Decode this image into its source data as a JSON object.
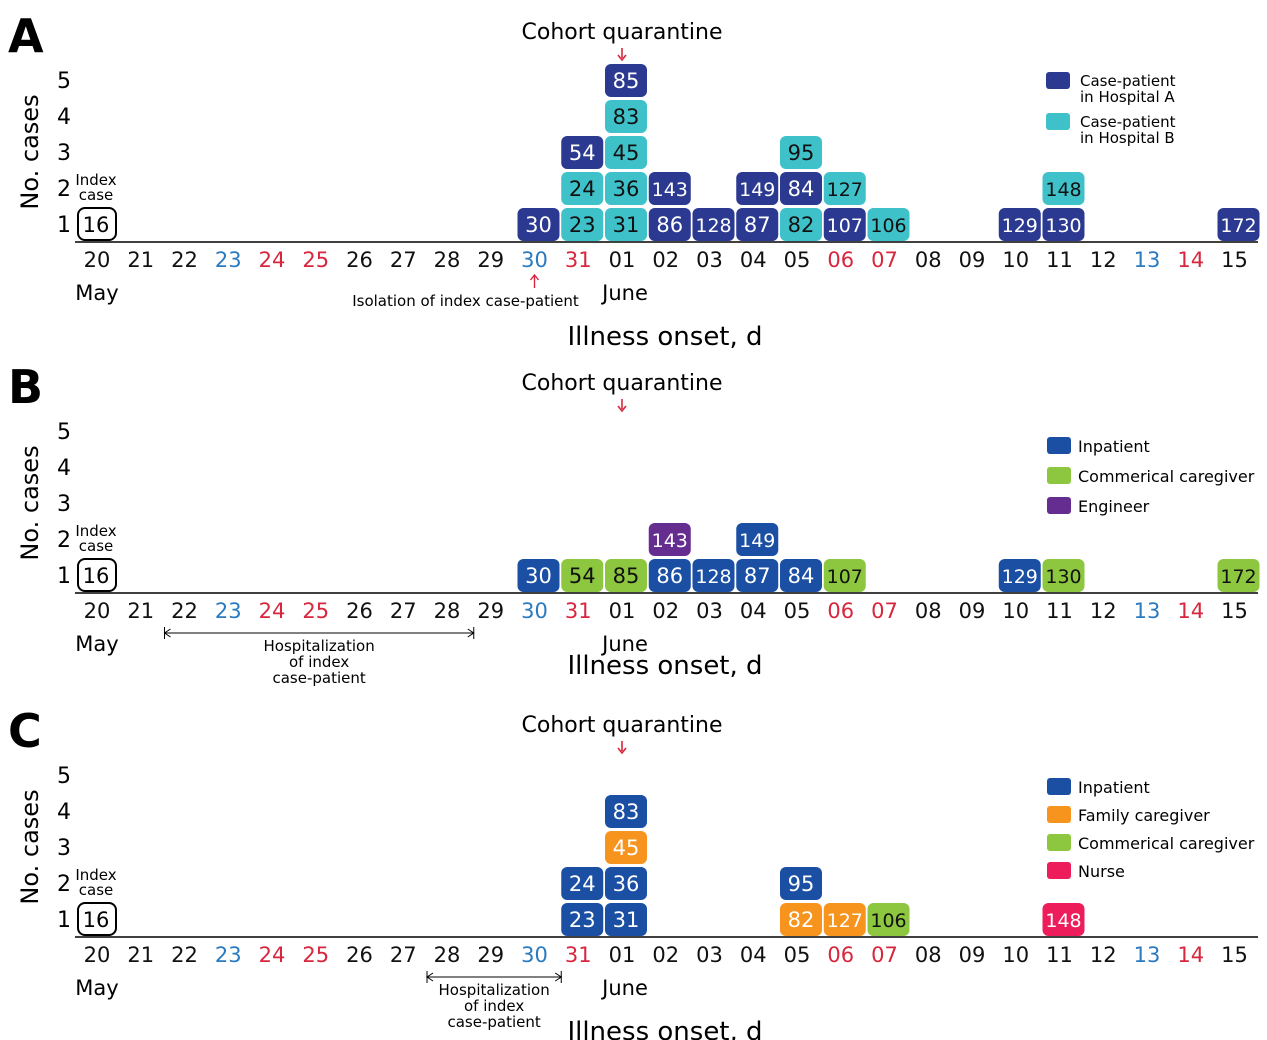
{
  "colors": {
    "hospital_a": "#2b3990",
    "hospital_b": "#3fc1c9",
    "inpatient": "#1a4fa3",
    "commercial_caregiver": "#8dc63f",
    "engineer": "#662d91",
    "family_caregiver": "#f7941d",
    "nurse": "#ed1c5a",
    "weekend_blue": "#2a7ac0",
    "weekend_red": "#d7263d",
    "arrow_red": "#d7263d"
  },
  "chart_data": [
    {
      "type": "bar",
      "panel_label": "A",
      "title": "Cohort quarantine",
      "xlabel": "Illness onset, d",
      "ylabel": "No. cases",
      "ylim": [
        0,
        5
      ],
      "yticks": [
        "1",
        "2",
        "3",
        "4",
        "5"
      ],
      "x_days": [
        "20",
        "21",
        "22",
        "23",
        "24",
        "25",
        "26",
        "27",
        "28",
        "29",
        "30",
        "31",
        "01",
        "02",
        "03",
        "04",
        "05",
        "06",
        "07",
        "08",
        "09",
        "10",
        "11",
        "12",
        "13",
        "14",
        "15"
      ],
      "day_colors": [
        "k",
        "k",
        "k",
        "b",
        "r",
        "r",
        "k",
        "k",
        "k",
        "k",
        "b",
        "r",
        "k",
        "k",
        "k",
        "k",
        "k",
        "r",
        "r",
        "k",
        "k",
        "k",
        "k",
        "k",
        "b",
        "r",
        "k"
      ],
      "month_labels": [
        {
          "text": "May",
          "at": "20"
        },
        {
          "text": "June",
          "at": "01"
        }
      ],
      "index_case": {
        "id": "16",
        "day": "20",
        "label_line1": "Index",
        "label_line2": "case"
      },
      "quarantine_day": "01",
      "annotation": {
        "type": "arrow",
        "text": "Isolation of index case-patient",
        "day": "30"
      },
      "legend": [
        {
          "key": "hospital_a",
          "line1": "Case-patient",
          "line2": "in Hospital A"
        },
        {
          "key": "hospital_b",
          "line1": "Case-patient",
          "line2": "in Hospital B"
        }
      ],
      "cases": [
        {
          "id": "30",
          "day": "30",
          "level": 1,
          "cat": "hospital_a"
        },
        {
          "id": "23",
          "day": "31",
          "level": 1,
          "cat": "hospital_b"
        },
        {
          "id": "24",
          "day": "31",
          "level": 2,
          "cat": "hospital_b"
        },
        {
          "id": "54",
          "day": "31",
          "level": 3,
          "cat": "hospital_a"
        },
        {
          "id": "31",
          "day": "01",
          "level": 1,
          "cat": "hospital_b"
        },
        {
          "id": "36",
          "day": "01",
          "level": 2,
          "cat": "hospital_b"
        },
        {
          "id": "45",
          "day": "01",
          "level": 3,
          "cat": "hospital_b"
        },
        {
          "id": "83",
          "day": "01",
          "level": 4,
          "cat": "hospital_b"
        },
        {
          "id": "85",
          "day": "01",
          "level": 5,
          "cat": "hospital_a"
        },
        {
          "id": "86",
          "day": "02",
          "level": 1,
          "cat": "hospital_a"
        },
        {
          "id": "143",
          "day": "02",
          "level": 2,
          "cat": "hospital_a"
        },
        {
          "id": "128",
          "day": "03",
          "level": 1,
          "cat": "hospital_a"
        },
        {
          "id": "87",
          "day": "04",
          "level": 1,
          "cat": "hospital_a"
        },
        {
          "id": "149",
          "day": "04",
          "level": 2,
          "cat": "hospital_a"
        },
        {
          "id": "82",
          "day": "05",
          "level": 1,
          "cat": "hospital_b"
        },
        {
          "id": "84",
          "day": "05",
          "level": 2,
          "cat": "hospital_a"
        },
        {
          "id": "95",
          "day": "05",
          "level": 3,
          "cat": "hospital_b"
        },
        {
          "id": "107",
          "day": "06",
          "level": 1,
          "cat": "hospital_a"
        },
        {
          "id": "127",
          "day": "06",
          "level": 2,
          "cat": "hospital_b"
        },
        {
          "id": "106",
          "day": "07",
          "level": 1,
          "cat": "hospital_b"
        },
        {
          "id": "129",
          "day": "10",
          "level": 1,
          "cat": "hospital_a"
        },
        {
          "id": "130",
          "day": "11",
          "level": 1,
          "cat": "hospital_a"
        },
        {
          "id": "148",
          "day": "11",
          "level": 2,
          "cat": "hospital_b"
        },
        {
          "id": "172",
          "day": "15",
          "level": 1,
          "cat": "hospital_a"
        }
      ]
    },
    {
      "type": "bar",
      "panel_label": "B",
      "title": "Cohort quarantine",
      "xlabel": "Illness onset, d",
      "ylabel": "No. cases",
      "ylim": [
        0,
        5
      ],
      "yticks": [
        "1",
        "2",
        "3",
        "4",
        "5"
      ],
      "x_days": [
        "20",
        "21",
        "22",
        "23",
        "24",
        "25",
        "26",
        "27",
        "28",
        "29",
        "30",
        "31",
        "01",
        "02",
        "03",
        "04",
        "05",
        "06",
        "07",
        "08",
        "09",
        "10",
        "11",
        "12",
        "13",
        "14",
        "15"
      ],
      "day_colors": [
        "k",
        "k",
        "k",
        "b",
        "r",
        "r",
        "k",
        "k",
        "k",
        "k",
        "b",
        "r",
        "k",
        "k",
        "k",
        "k",
        "k",
        "r",
        "r",
        "k",
        "k",
        "k",
        "k",
        "k",
        "b",
        "r",
        "k"
      ],
      "month_labels": [
        {
          "text": "May",
          "at": "20"
        },
        {
          "text": "June",
          "at": "01"
        }
      ],
      "index_case": {
        "id": "16",
        "day": "20",
        "label_line1": "Index",
        "label_line2": "case"
      },
      "quarantine_day": "01",
      "annotation": {
        "type": "span",
        "from": "22",
        "to": "29",
        "lines": [
          "Hospitalization",
          "of index",
          "case-patient"
        ]
      },
      "legend": [
        {
          "key": "inpatient",
          "line1": "Inpatient",
          "line2": ""
        },
        {
          "key": "commercial_caregiver",
          "line1": "Commerical caregiver",
          "line2": ""
        },
        {
          "key": "engineer",
          "line1": "Engineer",
          "line2": ""
        }
      ],
      "cases": [
        {
          "id": "30",
          "day": "30",
          "level": 1,
          "cat": "inpatient"
        },
        {
          "id": "54",
          "day": "31",
          "level": 1,
          "cat": "commercial_caregiver"
        },
        {
          "id": "85",
          "day": "01",
          "level": 1,
          "cat": "commercial_caregiver"
        },
        {
          "id": "86",
          "day": "02",
          "level": 1,
          "cat": "inpatient"
        },
        {
          "id": "143",
          "day": "02",
          "level": 2,
          "cat": "engineer"
        },
        {
          "id": "128",
          "day": "03",
          "level": 1,
          "cat": "inpatient"
        },
        {
          "id": "87",
          "day": "04",
          "level": 1,
          "cat": "inpatient"
        },
        {
          "id": "149",
          "day": "04",
          "level": 2,
          "cat": "inpatient"
        },
        {
          "id": "84",
          "day": "05",
          "level": 1,
          "cat": "inpatient"
        },
        {
          "id": "107",
          "day": "06",
          "level": 1,
          "cat": "commercial_caregiver"
        },
        {
          "id": "129",
          "day": "10",
          "level": 1,
          "cat": "inpatient"
        },
        {
          "id": "130",
          "day": "11",
          "level": 1,
          "cat": "commercial_caregiver"
        },
        {
          "id": "172",
          "day": "15",
          "level": 1,
          "cat": "commercial_caregiver"
        }
      ]
    },
    {
      "type": "bar",
      "panel_label": "C",
      "title": "Cohort quarantine",
      "xlabel": "Illness onset, d",
      "ylabel": "No. cases",
      "ylim": [
        0,
        5
      ],
      "yticks": [
        "1",
        "2",
        "3",
        "4",
        "5"
      ],
      "x_days": [
        "20",
        "21",
        "22",
        "23",
        "24",
        "25",
        "26",
        "27",
        "28",
        "29",
        "30",
        "31",
        "01",
        "02",
        "03",
        "04",
        "05",
        "06",
        "07",
        "08",
        "09",
        "10",
        "11",
        "12",
        "13",
        "14",
        "15"
      ],
      "day_colors": [
        "k",
        "k",
        "k",
        "b",
        "r",
        "r",
        "k",
        "k",
        "k",
        "k",
        "b",
        "r",
        "k",
        "k",
        "k",
        "k",
        "k",
        "r",
        "r",
        "k",
        "k",
        "k",
        "k",
        "k",
        "b",
        "r",
        "k"
      ],
      "month_labels": [
        {
          "text": "May",
          "at": "20"
        },
        {
          "text": "June",
          "at": "01"
        }
      ],
      "index_case": {
        "id": "16",
        "day": "20",
        "label_line1": "Index",
        "label_line2": "case"
      },
      "quarantine_day": "01",
      "annotation": {
        "type": "span",
        "from": "28",
        "to": "31",
        "lines": [
          "Hospitalization",
          "of index",
          "case-patient"
        ]
      },
      "legend": [
        {
          "key": "inpatient",
          "line1": "Inpatient",
          "line2": ""
        },
        {
          "key": "family_caregiver",
          "line1": "Family caregiver",
          "line2": ""
        },
        {
          "key": "commercial_caregiver",
          "line1": "Commerical caregiver",
          "line2": ""
        },
        {
          "key": "nurse",
          "line1": "Nurse",
          "line2": ""
        }
      ],
      "cases": [
        {
          "id": "23",
          "day": "31",
          "level": 1,
          "cat": "inpatient"
        },
        {
          "id": "24",
          "day": "31",
          "level": 2,
          "cat": "inpatient"
        },
        {
          "id": "31",
          "day": "01",
          "level": 1,
          "cat": "inpatient"
        },
        {
          "id": "36",
          "day": "01",
          "level": 2,
          "cat": "inpatient"
        },
        {
          "id": "45",
          "day": "01",
          "level": 3,
          "cat": "family_caregiver"
        },
        {
          "id": "83",
          "day": "01",
          "level": 4,
          "cat": "inpatient"
        },
        {
          "id": "95",
          "day": "05",
          "level": 2,
          "cat": "inpatient"
        },
        {
          "id": "82",
          "day": "05",
          "level": 1,
          "cat": "family_caregiver"
        },
        {
          "id": "127",
          "day": "06",
          "level": 1,
          "cat": "family_caregiver"
        },
        {
          "id": "106",
          "day": "07",
          "level": 1,
          "cat": "commercial_caregiver"
        },
        {
          "id": "148",
          "day": "11",
          "level": 1,
          "cat": "nurse"
        }
      ]
    }
  ]
}
